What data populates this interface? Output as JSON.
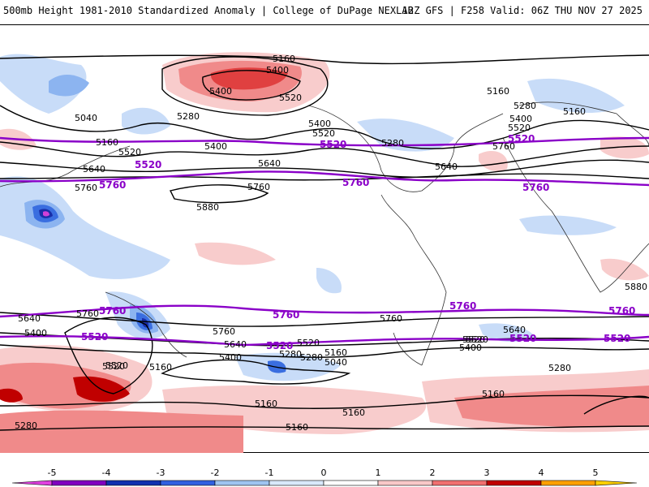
{
  "header": {
    "left": "500mb Height 1981-2010 Standardized Anomaly | College of DuPage NEXLAB",
    "right": "12Z GFS | F258 Valid: 06Z THU NOV 27 2025"
  },
  "contour_labels": [
    "5160",
    "5400",
    "5520",
    "5400",
    "5280",
    "5040",
    "5160",
    "5520",
    "5640",
    "5760",
    "5880",
    "5400",
    "5520",
    "5280",
    "5400",
    "5160",
    "5640",
    "5760",
    "5160",
    "5280",
    "5400",
    "5520",
    "5760",
    "5640",
    "5760",
    "5880",
    "5640",
    "5400",
    "5520",
    "5520",
    "5760",
    "5640",
    "5400",
    "5160",
    "5040",
    "5280",
    "5160",
    "5520",
    "5280",
    "5160",
    "5160",
    "5160",
    "5760",
    "5640",
    "5520",
    "5400",
    "5520",
    "5280",
    "5160",
    "5280"
  ],
  "reference_labels": [
    "5520",
    "5760",
    "5520",
    "5760",
    "5520",
    "5760",
    "5760",
    "5520",
    "5760",
    "5520",
    "5520",
    "5760",
    "5520",
    "5760"
  ],
  "colorbar": {
    "ticks": [
      "-5",
      "-4",
      "-3",
      "-2",
      "-1",
      "0",
      "1",
      "2",
      "3",
      "4",
      "5"
    ],
    "colors": [
      "#e040e0",
      "#8000c0",
      "#1030b0",
      "#3060e0",
      "#9ec4f0",
      "#d8e8fa",
      "#ffffff",
      "#f8c8c8",
      "#f07070",
      "#c00000",
      "#ffa000",
      "#ffd000"
    ]
  },
  "palette": {
    "neg1": "#c8dcf8",
    "neg2": "#8cb4f0",
    "neg3": "#3a6ee0",
    "neg4": "#1a2ea8",
    "neg5": "#d040d8",
    "pos1": "#f8cccc",
    "pos2": "#f08a8a",
    "pos3": "#e04040",
    "pos4": "#c00000",
    "land": "#ffffff",
    "contour": "#000000",
    "ref": "#8a00c8"
  }
}
